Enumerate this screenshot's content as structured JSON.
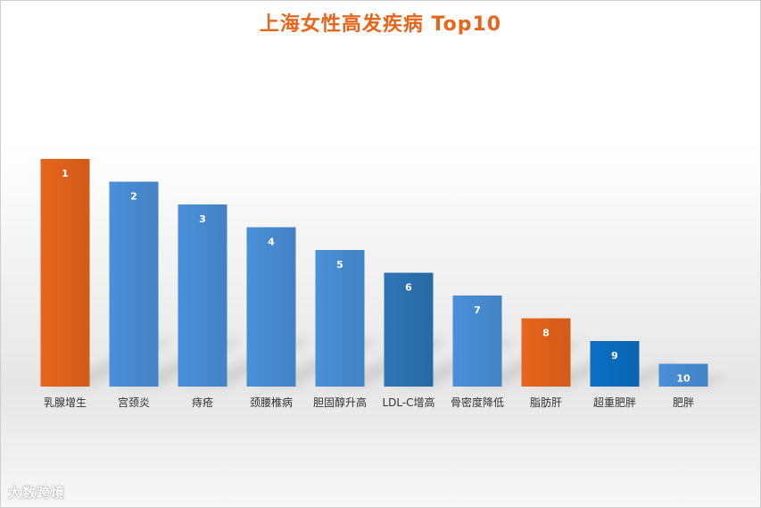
{
  "chart_data": {
    "type": "bar",
    "title": "上海女性高发疾病 Top10",
    "categories": [
      "乳腺增生",
      "宫颈炎",
      "痔疮",
      "颈腰椎病",
      "胆固醇升高",
      "LDL-C增高",
      "骨密度降低",
      "脂肪肝",
      "超重肥胖",
      "肥胖"
    ],
    "values": [
      10,
      9,
      8,
      7,
      6,
      5,
      4,
      3,
      2,
      1
    ],
    "data_labels": [
      "1",
      "2",
      "3",
      "4",
      "5",
      "6",
      "7",
      "8",
      "9",
      "10"
    ],
    "ylim": [
      0,
      10
    ],
    "grid": false,
    "legend": "none",
    "colors": [
      "#e8651c",
      "#4a90d9",
      "#4a90d9",
      "#4a90d9",
      "#4a90d9",
      "#2e75b6",
      "#4a90d9",
      "#e8651c",
      "#0b6fc4",
      "#4a90d9"
    ]
  },
  "watermark": "大数跨境"
}
